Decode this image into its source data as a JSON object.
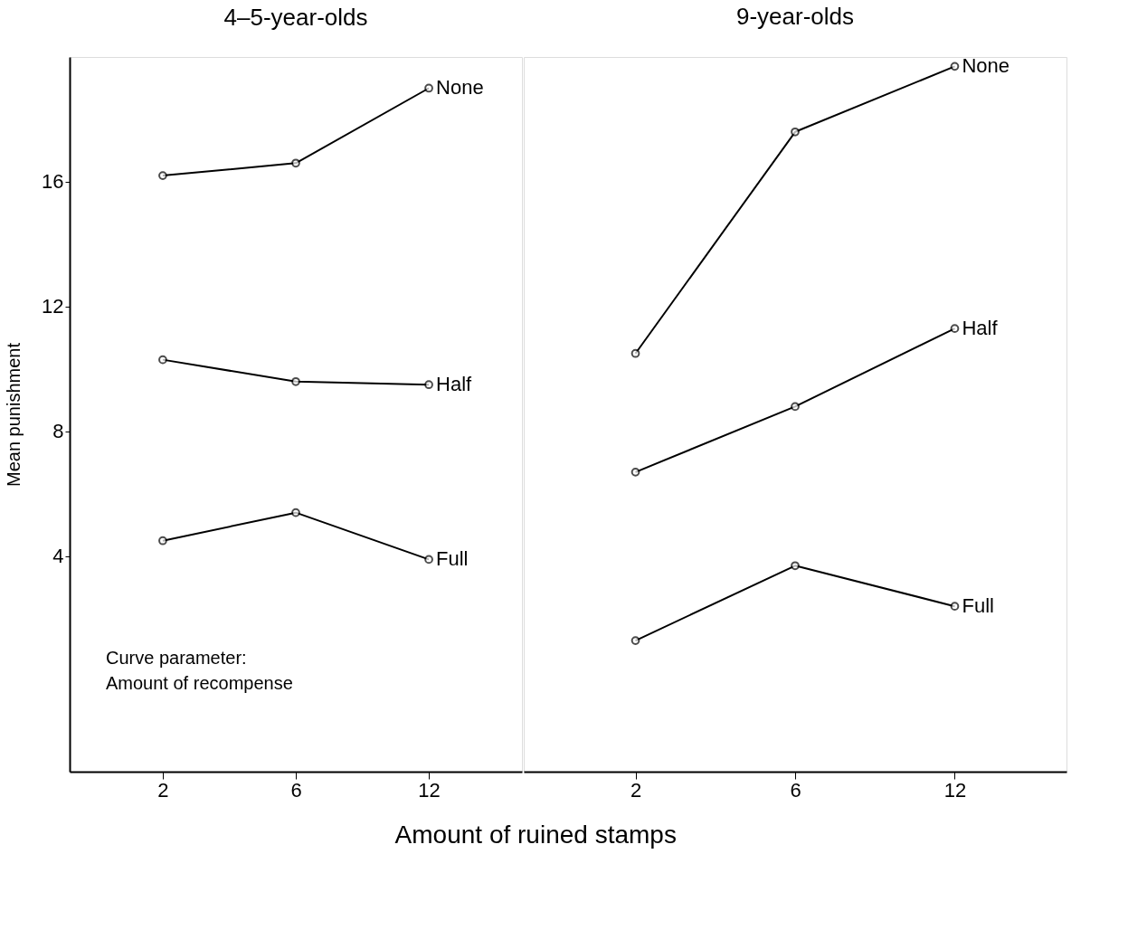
{
  "chart_data": [
    {
      "type": "line",
      "title": "4–5-year-olds",
      "xlabel": "Amount of ruined stamps",
      "ylabel": "Mean punishment",
      "categories": [
        "2",
        "6",
        "12"
      ],
      "series": [
        {
          "name": "None",
          "color": "#000000",
          "values": [
            16.2,
            16.6,
            19.0
          ]
        },
        {
          "name": "Half",
          "color": "#000000",
          "values": [
            10.3,
            9.6,
            9.5
          ]
        },
        {
          "name": "Full",
          "color": "#000000",
          "values": [
            4.5,
            5.4,
            3.9
          ]
        }
      ],
      "ylim": [
        -2.9,
        20
      ],
      "yticks": [
        4,
        8,
        12,
        16
      ],
      "marker": "circle",
      "grid": false,
      "annotations": [
        "Curve parameter:",
        "Amount of recompense"
      ]
    },
    {
      "type": "line",
      "title": "9-year-olds",
      "categories": [
        "2",
        "6",
        "12"
      ],
      "series": [
        {
          "name": "None",
          "color": "#000000",
          "values": [
            10.5,
            17.6,
            19.7
          ]
        },
        {
          "name": "Half",
          "color": "#000000",
          "values": [
            6.7,
            8.8,
            11.3
          ]
        },
        {
          "name": "Full",
          "color": "#000000",
          "values": [
            1.3,
            3.7,
            2.4
          ]
        }
      ],
      "ylim": [
        -2.9,
        20
      ],
      "yticks": [
        4,
        8,
        12,
        16
      ],
      "marker": "circle",
      "grid": false,
      "tick_labels": "x"
    }
  ]
}
